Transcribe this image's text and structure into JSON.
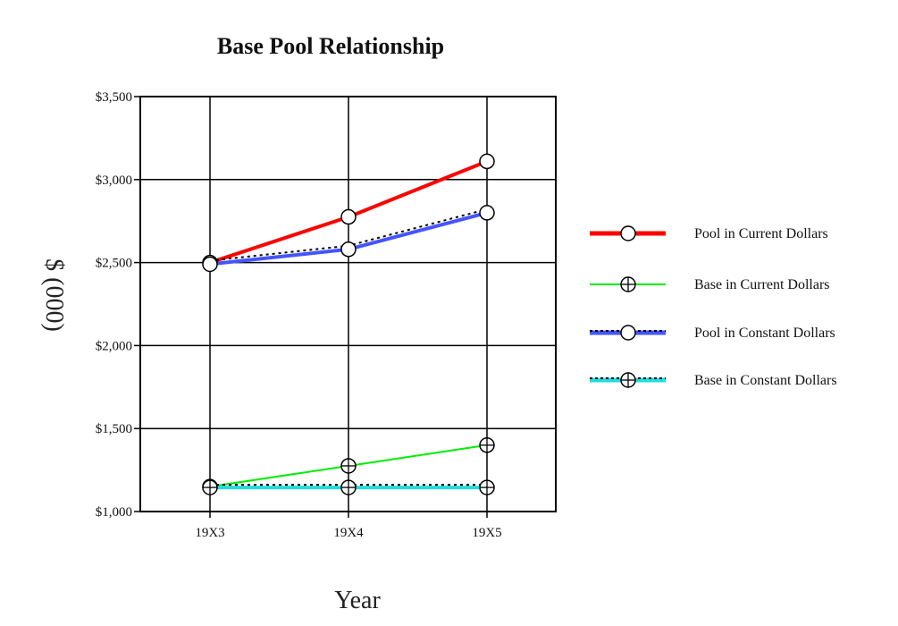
{
  "chart_data": {
    "type": "line",
    "title": "Base Pool Relationship",
    "xlabel": "Year",
    "ylabel": "$ (000)",
    "categories": [
      "19X3",
      "19X4",
      "19X5"
    ],
    "ylim": [
      1000,
      3500
    ],
    "yticks": [
      1000,
      1500,
      2000,
      2500,
      3000,
      3500
    ],
    "ytick_labels": [
      "$1,000",
      "$1,500",
      "$2,000",
      "$2,500",
      "$3,000",
      "$3,500"
    ],
    "grid": true,
    "legend_position": "right",
    "series": [
      {
        "name": "Pool in Current Dollars",
        "values": [
          2500,
          2775,
          3110
        ],
        "color": "#ff0000",
        "marker": "circle",
        "line_style": "solid",
        "line_weight": "thick"
      },
      {
        "name": "Base in Current Dollars",
        "values": [
          1150,
          1275,
          1400
        ],
        "color": "#00ee00",
        "marker": "circle-cross",
        "line_style": "solid",
        "line_weight": "thin"
      },
      {
        "name": "Pool  in Constant Dollars",
        "values": [
          2490,
          2580,
          2800
        ],
        "color": "#4455ff",
        "marker": "circle",
        "line_style": "solid",
        "line_weight": "thick",
        "overlay": "dotted-black"
      },
      {
        "name": "Base in Constant Dollars",
        "values": [
          1145,
          1145,
          1145
        ],
        "color": "#22dddd",
        "marker": "circle-cross",
        "line_style": "solid",
        "line_weight": "thick",
        "overlay": "dotted-black"
      }
    ]
  }
}
